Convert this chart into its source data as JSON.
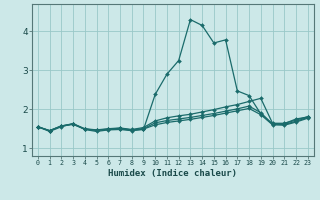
{
  "xlabel": "Humidex (Indice chaleur)",
  "background_color": "#cce8e8",
  "grid_color": "#99c8c8",
  "line_color": "#1a6b6b",
  "xlim": [
    -0.5,
    23.5
  ],
  "ylim": [
    0.8,
    4.7
  ],
  "xticks": [
    0,
    1,
    2,
    3,
    4,
    5,
    6,
    7,
    8,
    9,
    10,
    11,
    12,
    13,
    14,
    15,
    16,
    17,
    18,
    19,
    20,
    21,
    22,
    23
  ],
  "yticks": [
    1,
    2,
    3,
    4
  ],
  "curves": [
    [
      1.55,
      1.43,
      1.55,
      1.63,
      1.48,
      1.43,
      1.47,
      1.48,
      1.45,
      1.48,
      2.38,
      2.9,
      3.25,
      4.3,
      4.15,
      3.7,
      3.78,
      2.47,
      2.35,
      1.88,
      1.62,
      1.63,
      1.75,
      1.8
    ],
    [
      1.55,
      1.45,
      1.57,
      1.63,
      1.5,
      1.47,
      1.5,
      1.52,
      1.48,
      1.53,
      1.7,
      1.78,
      1.83,
      1.87,
      1.93,
      1.99,
      2.06,
      2.12,
      2.2,
      2.28,
      1.64,
      1.64,
      1.72,
      1.81
    ],
    [
      1.55,
      1.45,
      1.57,
      1.62,
      1.49,
      1.46,
      1.49,
      1.51,
      1.47,
      1.5,
      1.65,
      1.71,
      1.75,
      1.79,
      1.84,
      1.89,
      1.95,
      2.01,
      2.08,
      1.91,
      1.62,
      1.61,
      1.69,
      1.79
    ],
    [
      1.55,
      1.45,
      1.57,
      1.61,
      1.49,
      1.46,
      1.48,
      1.5,
      1.46,
      1.49,
      1.6,
      1.66,
      1.7,
      1.74,
      1.79,
      1.84,
      1.9,
      1.96,
      2.02,
      1.86,
      1.6,
      1.59,
      1.67,
      1.77
    ]
  ]
}
